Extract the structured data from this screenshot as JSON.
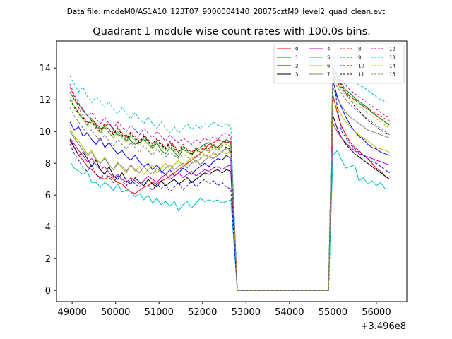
{
  "header": {
    "data_file": "Data file: modeM0/AS1A10_123T07_9000004140_28875cztM0_level2_quad_clean.evt"
  },
  "chart_data": {
    "type": "line",
    "title": "Quadrant 1 module wise count rates with 100.0s bins.",
    "xlabel": "",
    "ylabel": "",
    "x_offset_label": "+3.496e8",
    "xlim": [
      48640,
      56700
    ],
    "ylim": [
      -0.7,
      15.7
    ],
    "xticks": [
      49000,
      50000,
      51000,
      52000,
      53000,
      54000,
      55000,
      56000
    ],
    "xtick_labels": [
      "49000",
      "50000",
      "51000",
      "52000",
      "53000",
      "54000",
      "55000",
      "56000"
    ],
    "yticks": [
      0,
      2,
      4,
      6,
      8,
      10,
      12,
      14
    ],
    "ytick_labels": [
      "0",
      "2",
      "4",
      "6",
      "8",
      "10",
      "12",
      "14"
    ],
    "gap": [
      52800,
      54900
    ],
    "x_start": 48950,
    "x_step": 100,
    "series": [
      {
        "name": "0",
        "color": "#ff0000",
        "dash": "solid",
        "seg1": [
          9.4,
          9.0,
          8.5,
          8.2,
          7.8,
          7.6,
          7.3,
          7.1,
          7.0,
          7.2,
          7.0,
          6.8,
          6.7,
          6.4,
          6.2,
          6.1,
          6.3,
          6.5,
          6.6,
          6.8,
          6.7,
          6.9,
          7.0,
          7.2,
          7.4,
          7.6,
          7.8,
          8.0,
          8.2,
          8.4,
          8.6,
          8.9,
          9.2,
          9.3,
          9.5,
          9.4,
          9.3,
          9.4
        ],
        "seg2": [
          12.3,
          11.2,
          10.3,
          9.8,
          9.3,
          9.0,
          8.8,
          8.5,
          8.3,
          8.0,
          7.7,
          7.5,
          7.2,
          7.0
        ]
      },
      {
        "name": "1",
        "color": "#008000",
        "dash": "solid",
        "seg1": [
          12.5,
          12.0,
          11.7,
          11.3,
          11.0,
          10.8,
          10.5,
          10.2,
          10.3,
          10.5,
          10.1,
          9.8,
          9.7,
          9.8,
          9.4,
          9.2,
          9.3,
          9.5,
          9.2,
          8.9,
          9.3,
          8.8,
          8.6,
          9.0,
          8.7,
          8.4,
          8.9,
          8.7,
          8.6,
          8.9,
          9.0,
          9.2,
          9.3,
          9.1,
          9.0,
          9.3,
          9.5,
          9.3
        ],
        "seg2": [
          14.0,
          13.5,
          13.0,
          12.6,
          12.4,
          12.1,
          11.9,
          11.7,
          11.5,
          11.2,
          11.0,
          10.8,
          10.6,
          10.4
        ]
      },
      {
        "name": "2",
        "color": "#0000ff",
        "dash": "solid",
        "seg1": [
          10.6,
          10.1,
          10.3,
          9.7,
          9.9,
          9.5,
          9.2,
          9.6,
          9.0,
          9.3,
          8.9,
          8.6,
          8.8,
          8.4,
          8.2,
          8.5,
          8.1,
          7.8,
          8.0,
          7.6,
          7.9,
          7.5,
          7.3,
          7.6,
          7.2,
          7.4,
          7.7,
          7.5,
          7.3,
          7.6,
          7.8,
          8.0,
          7.8,
          8.1,
          8.3,
          8.2,
          8.5,
          8.3
        ],
        "seg2": [
          13.2,
          12.2,
          11.5,
          10.9,
          10.4,
          10.0,
          9.7,
          9.5,
          9.2,
          9.0,
          8.9,
          8.7,
          8.6,
          8.5
        ]
      },
      {
        "name": "3",
        "color": "#000000",
        "dash": "solid",
        "seg1": [
          9.5,
          9.0,
          8.5,
          8.7,
          8.3,
          7.8,
          8.2,
          7.6,
          7.3,
          7.8,
          7.2,
          7.0,
          7.4,
          6.9,
          6.7,
          7.1,
          6.8,
          6.6,
          7.0,
          6.7,
          6.5,
          6.9,
          6.6,
          6.8,
          7.0,
          6.7,
          6.9,
          7.1,
          6.8,
          7.0,
          7.2,
          7.4,
          7.3,
          7.5,
          7.6,
          7.4,
          7.6,
          7.5
        ],
        "seg2": [
          11.0,
          10.2,
          9.6,
          9.2,
          8.9,
          8.6,
          8.4,
          8.2,
          8.0,
          7.8,
          7.6,
          7.4,
          7.2,
          7.0
        ]
      },
      {
        "name": "4",
        "color": "#bf00bf",
        "dash": "solid",
        "seg1": [
          9.6,
          9.2,
          8.8,
          8.5,
          8.1,
          8.3,
          7.9,
          7.6,
          7.8,
          7.4,
          7.1,
          7.3,
          7.0,
          6.8,
          7.1,
          6.9,
          6.7,
          6.9,
          7.2,
          7.0,
          6.8,
          7.1,
          7.3,
          7.0,
          7.2,
          7.4,
          7.1,
          7.3,
          7.5,
          7.2,
          7.4,
          7.6,
          7.5,
          7.7,
          7.8,
          7.6,
          7.8,
          7.9
        ],
        "seg2": [
          10.5,
          10.0,
          9.6,
          9.3,
          9.0,
          8.8,
          8.6,
          8.5,
          8.4,
          8.3,
          8.2,
          8.1,
          8.0,
          7.9
        ]
      },
      {
        "name": "5",
        "color": "#00bfbf",
        "dash": "solid",
        "seg1": [
          8.1,
          7.7,
          7.5,
          7.3,
          7.5,
          6.8,
          6.8,
          6.5,
          6.8,
          6.6,
          6.3,
          6.7,
          6.2,
          6.3,
          6.2,
          5.9,
          6.1,
          5.7,
          6.0,
          5.5,
          5.8,
          5.4,
          5.6,
          5.3,
          5.6,
          5.0,
          5.4,
          5.6,
          5.2,
          5.5,
          5.8,
          5.6,
          5.7,
          5.6,
          5.7,
          5.5,
          5.6,
          5.7
        ],
        "seg2": [
          8.5,
          8.8,
          8.2,
          7.7,
          7.8,
          7.9,
          6.9,
          7.1,
          6.7,
          6.9,
          6.6,
          6.8,
          6.4,
          6.4
        ]
      },
      {
        "name": "6",
        "color": "#bfbf00",
        "dash": "solid",
        "seg1": [
          10.2,
          9.7,
          9.4,
          9.0,
          8.6,
          8.8,
          8.3,
          8.0,
          8.4,
          7.9,
          7.6,
          8.1,
          7.7,
          7.4,
          7.9,
          7.5,
          7.8,
          7.3,
          7.6,
          7.9,
          7.4,
          7.7,
          8.0,
          7.6,
          7.9,
          8.2,
          7.8,
          8.1,
          8.4,
          8.0,
          8.3,
          8.5,
          8.4,
          8.6,
          8.5,
          8.7,
          8.6,
          8.8
        ],
        "seg2": [
          12.0,
          11.5,
          11.0,
          10.6,
          10.3,
          10.0,
          9.8,
          9.6,
          9.4,
          9.2,
          9.0,
          8.9,
          8.8,
          8.7
        ]
      },
      {
        "name": "7",
        "color": "#808080",
        "dash": "solid",
        "seg1": [
          10.0,
          9.6,
          9.2,
          8.8,
          8.5,
          8.7,
          8.2,
          8.0,
          8.3,
          7.9,
          7.6,
          8.0,
          7.8,
          7.5,
          7.9,
          7.6,
          7.4,
          7.8,
          7.5,
          7.3,
          7.7,
          7.4,
          7.7,
          7.9,
          7.6,
          7.8,
          8.0,
          7.7,
          8.0,
          8.2,
          7.9,
          8.2,
          8.4,
          8.3,
          8.5,
          8.7,
          9.0,
          8.8
        ],
        "seg2": [
          12.8,
          12.1,
          11.6,
          11.2,
          10.9,
          10.7,
          10.5,
          10.3,
          10.1,
          10.0,
          9.9,
          9.8,
          9.7,
          9.6
        ]
      },
      {
        "name": "8",
        "color": "#ff0000",
        "dash": "dashed",
        "seg1": [
          12.8,
          12.2,
          11.5,
          11.0,
          10.6,
          10.8,
          10.4,
          10.1,
          10.5,
          10.2,
          9.9,
          10.3,
          9.9,
          9.6,
          10.0,
          9.7,
          9.4,
          9.8,
          9.5,
          9.2,
          9.6,
          9.3,
          9.0,
          9.4,
          9.1,
          8.8,
          9.2,
          8.9,
          8.7,
          9.0,
          8.8,
          9.1,
          8.9,
          9.2,
          9.0,
          9.3,
          9.5,
          9.3
        ],
        "seg2": [
          13.6,
          13.1,
          12.7,
          12.4,
          12.2,
          12.0,
          11.8,
          11.6,
          11.4,
          11.3,
          11.1,
          11.0,
          10.8,
          10.7
        ]
      },
      {
        "name": "9",
        "color": "#008000",
        "dash": "dashed",
        "seg1": [
          12.0,
          11.5,
          11.1,
          10.8,
          10.4,
          10.6,
          10.2,
          9.9,
          10.3,
          9.9,
          9.6,
          10.0,
          9.7,
          9.4,
          9.8,
          9.5,
          9.2,
          9.6,
          9.3,
          9.0,
          9.4,
          9.1,
          8.9,
          9.2,
          8.9,
          8.7,
          9.0,
          8.8,
          8.6,
          8.9,
          8.7,
          9.0,
          8.8,
          9.1,
          8.9,
          9.2,
          9.4,
          9.2
        ],
        "seg2": [
          13.8,
          13.2,
          12.8,
          12.5,
          12.2,
          12.0,
          11.8,
          11.6,
          11.4,
          11.2,
          11.0,
          10.8,
          10.6,
          10.4
        ]
      },
      {
        "name": "10",
        "color": "#0000ff",
        "dash": "dashed",
        "seg1": [
          9.2,
          8.6,
          8.2,
          7.7,
          7.5,
          7.9,
          7.3,
          7.0,
          7.4,
          7.1,
          6.8,
          7.2,
          6.9,
          6.6,
          7.0,
          6.7,
          6.5,
          6.9,
          6.6,
          6.3,
          6.7,
          6.4,
          6.7,
          6.2,
          6.5,
          6.8,
          6.3,
          6.6,
          6.9,
          6.5,
          6.8,
          7.0,
          6.7,
          6.9,
          6.6,
          6.8,
          6.5,
          6.4
        ],
        "seg2": [
          14.0,
          11.5,
          10.0,
          9.6,
          9.2,
          8.9,
          8.7,
          8.5,
          8.3,
          8.1,
          8.0,
          7.8,
          7.6,
          7.4
        ]
      },
      {
        "name": "11",
        "color": "#000000",
        "dash": "dashed",
        "seg1": [
          12.0,
          11.6,
          11.2,
          10.9,
          10.5,
          10.7,
          10.3,
          10.0,
          10.4,
          10.1,
          9.8,
          10.2,
          9.8,
          9.5,
          9.9,
          9.6,
          9.3,
          9.7,
          9.4,
          9.1,
          9.5,
          9.2,
          8.9,
          9.3,
          9.0,
          8.7,
          9.1,
          8.8,
          8.5,
          8.9,
          8.6,
          8.9,
          8.7,
          9.0,
          8.8,
          9.1,
          9.0,
          8.9
        ],
        "seg2": [
          14.0,
          13.4,
          12.9,
          12.4,
          12.0,
          11.6,
          11.3,
          11.0,
          10.7,
          10.5,
          10.3,
          10.1,
          9.9,
          9.8
        ]
      },
      {
        "name": "12",
        "color": "#bf00bf",
        "dash": "dashed",
        "seg1": [
          13.0,
          12.3,
          11.8,
          11.4,
          11.0,
          11.2,
          10.8,
          10.5,
          10.9,
          10.5,
          10.2,
          10.6,
          10.3,
          10.0,
          10.4,
          10.1,
          9.8,
          10.2,
          9.9,
          9.6,
          10.0,
          9.7,
          9.4,
          9.8,
          9.5,
          9.3,
          9.6,
          9.4,
          9.2,
          9.5,
          9.3,
          9.6,
          9.4,
          9.7,
          9.5,
          9.8,
          9.9,
          9.7
        ],
        "seg2": [
          14.1,
          13.6,
          13.2,
          12.9,
          12.6,
          12.4,
          12.2,
          12.0,
          11.8,
          11.6,
          11.4,
          11.2,
          11.0,
          10.9
        ]
      },
      {
        "name": "13",
        "color": "#00bfbf",
        "dash": "dashed",
        "seg1": [
          13.5,
          13.0,
          12.5,
          12.8,
          12.2,
          11.8,
          12.2,
          11.9,
          11.5,
          11.9,
          11.4,
          11.1,
          11.5,
          11.1,
          10.8,
          11.2,
          10.8,
          10.5,
          10.9,
          10.5,
          10.2,
          10.6,
          10.2,
          9.9,
          10.3,
          9.9,
          10.2,
          10.5,
          10.1,
          10.4,
          10.2,
          10.5,
          10.3,
          10.6,
          10.4,
          10.3,
          10.5,
          10.3
        ],
        "seg2": [
          14.8,
          14.0,
          13.9,
          13.6,
          13.5,
          13.2,
          12.9,
          12.8,
          12.6,
          12.4,
          12.2,
          12.0,
          11.9,
          11.8
        ]
      },
      {
        "name": "14",
        "color": "#bfbf00",
        "dash": "dashed",
        "seg1": [
          12.2,
          11.6,
          11.2,
          10.8,
          10.4,
          10.6,
          10.2,
          9.9,
          10.3,
          9.9,
          9.6,
          10.0,
          9.6,
          9.3,
          9.7,
          9.4,
          9.1,
          9.5,
          9.2,
          8.9,
          9.3,
          9.0,
          8.8,
          9.1,
          8.8,
          8.6,
          8.9,
          8.7,
          8.5,
          8.8,
          8.6,
          8.9,
          8.7,
          9.0,
          8.8,
          9.1,
          9.2,
          9.0
        ],
        "seg2": [
          13.6,
          13.0,
          12.6,
          12.3,
          12.0,
          11.8,
          11.6,
          11.4,
          11.2,
          11.0,
          10.8,
          10.6,
          10.4,
          10.2
        ]
      },
      {
        "name": "15",
        "color": "#808080",
        "dash": "dashed",
        "seg1": [
          11.5,
          11.0,
          10.6,
          10.2,
          9.9,
          10.1,
          9.7,
          9.4,
          9.8,
          9.4,
          9.1,
          9.5,
          9.2,
          8.9,
          9.3,
          9.0,
          8.7,
          9.1,
          8.8,
          8.5,
          8.9,
          8.6,
          8.4,
          8.7,
          8.5,
          8.3,
          8.6,
          8.4,
          8.2,
          8.5,
          8.3,
          8.6,
          8.4,
          8.7,
          8.5,
          8.8,
          8.9,
          8.7
        ],
        "seg2": [
          13.4,
          12.8,
          12.4,
          12.0,
          11.7,
          11.4,
          11.2,
          11.0,
          10.8,
          10.6,
          10.4,
          10.2,
          10.0,
          9.8
        ]
      }
    ]
  }
}
